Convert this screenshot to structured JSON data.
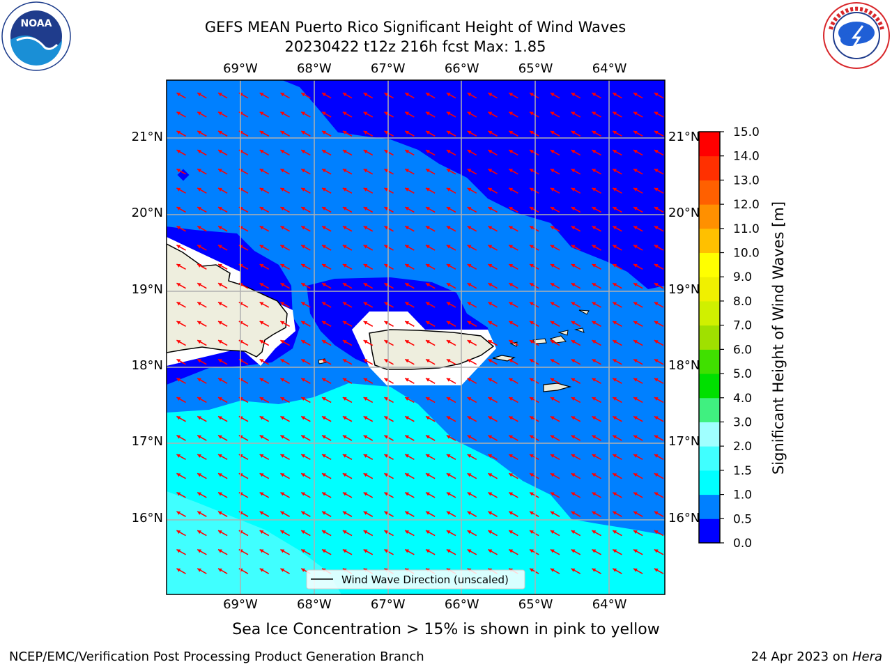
{
  "header": {
    "title_line1": "GEFS MEAN Puerto Rico Significant Height of Wind Waves",
    "title_line2": "20230422 t12z 216h fcst   Max: 1.85"
  },
  "logos": {
    "left_logo_text": "NOAA",
    "left_logo_ring": "NATIONAL OCEANIC AND ATMOSPHERIC ADMINISTRATION · U.S. DEPARTMENT OF COMMERCE",
    "right_logo_ring": "NATIONAL WEATHER SERVICE"
  },
  "chart_data": {
    "type": "heatmap",
    "title": "GEFS MEAN Puerto Rico Significant Height of Wind Waves",
    "subtitle": "20230422 t12z 216h fcst   Max: 1.85",
    "x_ticks": [
      "69°W",
      "68°W",
      "67°W",
      "66°W",
      "65°W",
      "64°W"
    ],
    "x_tick_values": [
      -69,
      -68,
      -67,
      -66,
      -65,
      -64
    ],
    "y_ticks": [
      "21°N",
      "20°N",
      "19°N",
      "18°N",
      "17°N",
      "16°N"
    ],
    "y_tick_values": [
      21,
      20,
      19,
      18,
      17,
      16
    ],
    "xlim": [
      -70.0,
      -63.25
    ],
    "ylim": [
      15.0,
      21.75
    ],
    "grid": true,
    "legend": {
      "label": "Wind Wave Direction (unscaled)",
      "placement": "bottom-center"
    },
    "colorbar": {
      "label": "Significant Height of Wind Waves [m]",
      "ticks": [
        "15.0",
        "14.0",
        "13.0",
        "12.0",
        "11.0",
        "10.0",
        "9.0",
        "8.0",
        "7.0",
        "6.0",
        "5.0",
        "4.0",
        "3.0",
        "2.0",
        "1.5",
        "1.0",
        "0.5",
        "0.0"
      ],
      "levels": [
        0.0,
        0.5,
        1.0,
        1.5,
        2.0,
        3.0,
        4.0,
        5.0,
        6.0,
        7.0,
        8.0,
        9.0,
        10.0,
        11.0,
        12.0,
        13.0,
        14.0,
        15.0
      ],
      "colors": [
        "#0000ff",
        "#0080ff",
        "#00ffff",
        "#40ffff",
        "#a0ffff",
        "#40f080",
        "#00e000",
        "#40e000",
        "#a0e000",
        "#d0f000",
        "#f0f000",
        "#ffff00",
        "#ffc000",
        "#ff9000",
        "#ff6000",
        "#ff3000",
        "#ff0000"
      ]
    },
    "max_value": 1.85,
    "wind_wave_direction": "toward west-northwest (arrows point up-left), arrow color red",
    "arrow_color": "#ff0000",
    "land_color": "#eeeede",
    "coastline_color": "#000000"
  },
  "caption": "Sea Ice Concentration > 15% is shown in pink to yellow",
  "footer": {
    "left": "NCEP/EMC/Verification Post Processing Product Generation Branch",
    "right_date": "24 Apr 2023 on ",
    "right_host": "Hera"
  }
}
